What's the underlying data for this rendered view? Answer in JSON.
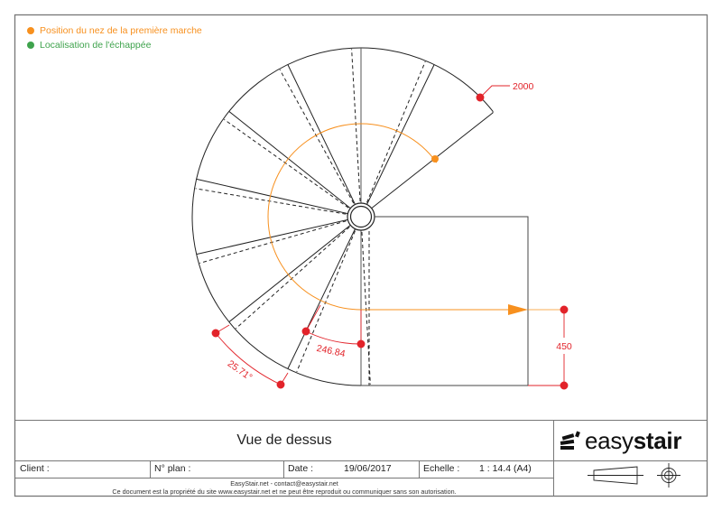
{
  "legend": {
    "items": [
      {
        "label": "Position du nez de la première marche",
        "color": "#f7901e"
      },
      {
        "label": "Localisation de l'échappée",
        "color": "#3fa34d"
      }
    ]
  },
  "drawing": {
    "dimension_diameter": "2000",
    "dimension_angle": "25.71°",
    "dimension_tread": "246.84",
    "dimension_landing": "450",
    "colors": {
      "line": "#222222",
      "walkline": "#f7901e",
      "dimension": "#e2232a",
      "frame": "#777777"
    }
  },
  "title_block": {
    "view_title": "Vue de dessus",
    "client_label": "Client :",
    "client_value": "",
    "plan_label": "N° plan :",
    "plan_value": "",
    "date_label": "Date :",
    "date_value": "19/06/2017",
    "scale_label": "Echelle :",
    "scale_value": "1 : 14.4 (A4)",
    "contact_line": "EasyStair.net - contact@easystair.net",
    "copyright_line": "Ce document est la propriété du site www.easystair.net et ne peut être reproduit ou communiquer sans son autorisation.",
    "logo_light": "easy",
    "logo_bold": "stair",
    "projection_symbol": "first-angle-projection-icon"
  }
}
